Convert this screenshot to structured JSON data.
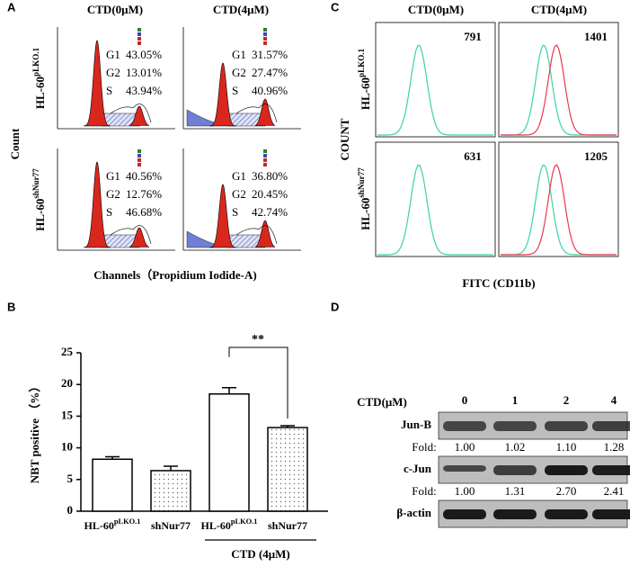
{
  "panel_a": {
    "label": "A",
    "columns": [
      "CTD(0μM)",
      "CTD(4μM)"
    ],
    "rows": [
      {
        "name": "HL-60",
        "sup": "pLKO.1"
      },
      {
        "name": "HL-60",
        "sup": "shNur77"
      }
    ],
    "y_label": "Count",
    "x_label": "Channels（Propidium Iodide-A)",
    "plots": [
      [
        [
          {
            "phase": "G1",
            "value": "43.05%"
          },
          {
            "phase": "G2",
            "value": "13.01%"
          },
          {
            "phase": "S",
            "value": "43.94%"
          }
        ],
        [
          {
            "phase": "G1",
            "value": "31.57%"
          },
          {
            "phase": "G2",
            "value": "27.47%"
          },
          {
            "phase": "S",
            "value": "40.96%"
          }
        ]
      ],
      [
        [
          {
            "phase": "G1",
            "value": "40.56%"
          },
          {
            "phase": "G2",
            "value": "12.76%"
          },
          {
            "phase": "S",
            "value": "46.68%"
          }
        ],
        [
          {
            "phase": "G1",
            "value": "36.80%"
          },
          {
            "phase": "G2",
            "value": "20.45%"
          },
          {
            "phase": "S",
            "value": "42.74%"
          }
        ]
      ]
    ]
  },
  "panel_c": {
    "label": "C",
    "columns": [
      "CTD(0μM)",
      "CTD(4μM)"
    ],
    "rows": [
      {
        "name": "HL-60",
        "sup": "pLKO.1"
      },
      {
        "name": "HL-60",
        "sup": "shNur77"
      }
    ],
    "y_label": "COUNT",
    "x_label": "FITC (CD11b)",
    "mfi": [
      [
        791,
        1401
      ],
      [
        631,
        1205
      ]
    ]
  },
  "chart_data": {
    "type": "bar",
    "panel_label": "B",
    "y_label": "NBT positive （%）",
    "categories": [
      "HL-60",
      "shNur77",
      "HL-60",
      "shNur77"
    ],
    "category_superscripts": [
      "pLKO.1",
      null,
      "pLKO.1",
      null
    ],
    "values": [
      8.2,
      6.4,
      18.5,
      13.2
    ],
    "errors": [
      0.4,
      0.7,
      1.0,
      0.3
    ],
    "ylim": [
      0,
      25
    ],
    "yticks": [
      0,
      5,
      10,
      15,
      20,
      25
    ],
    "group_label": "CTD (4μM)",
    "annotation": "**"
  },
  "panel_d": {
    "label": "D",
    "dose_label": "CTD(μM)",
    "doses": [
      "0",
      "1",
      "2",
      "4"
    ],
    "fold_label": "Fold:",
    "proteins": [
      {
        "name": "Jun-B",
        "fold": [
          "1.00",
          "1.02",
          "1.10",
          "1.28"
        ]
      },
      {
        "name": "c-Jun",
        "fold": [
          "1.00",
          "1.31",
          "2.70",
          "2.41"
        ]
      },
      {
        "name": "β-actin"
      }
    ]
  }
}
